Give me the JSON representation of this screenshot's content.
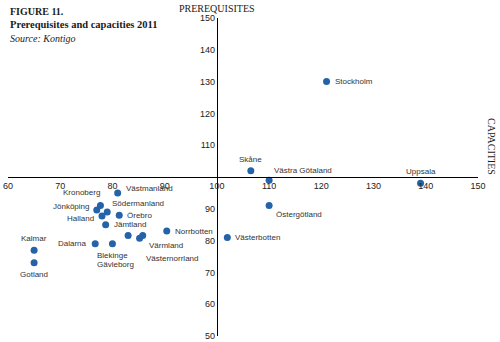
{
  "chart_data": {
    "type": "scatter",
    "title": "Prerequisites and capacities 2011",
    "subtitle": "Source: Kontigo",
    "annotations": [
      "FIGURE 11."
    ],
    "x_label": "CAPACITIES",
    "y_label": "PREREQUISITES",
    "labels": [
      "Stockholm",
      "Skåne",
      "Västra Götaland",
      "Uppsala",
      "Östergötland",
      "Västerbotten",
      "Västmanland",
      "Kronoberg",
      "Jönköping",
      "Södermanland",
      "Örebro",
      "Halland",
      "Jämtland",
      "Norrbotten",
      "Dalarna",
      "Kalmar",
      "Gotland",
      "Blekinge",
      "Gävleborg",
      "Värmland",
      "Västernorrland"
    ],
    "x": [
      121,
      106.5,
      110,
      139,
      110,
      102,
      81,
      77.7,
      77,
      79,
      81.3,
      78,
      78.7,
      90.4,
      76.7,
      65,
      65,
      80,
      83,
      85.8,
      85.2
    ],
    "values": [
      130,
      102,
      99,
      98,
      91,
      81,
      95,
      91,
      89.6,
      89,
      88,
      87.7,
      85,
      83,
      79,
      77,
      73,
      79,
      81.6,
      81.6,
      80.7
    ],
    "color": "#2463a8",
    "marker": "circle",
    "data_labels": true,
    "xlim": [
      60,
      150
    ],
    "xticks": [
      60,
      70,
      80,
      90,
      100,
      110,
      120,
      130,
      140,
      150
    ],
    "ylim": [
      50,
      150
    ],
    "yticks": [
      50,
      60,
      70,
      80,
      90,
      110,
      120,
      130,
      140,
      150
    ],
    "grid": false
  }
}
